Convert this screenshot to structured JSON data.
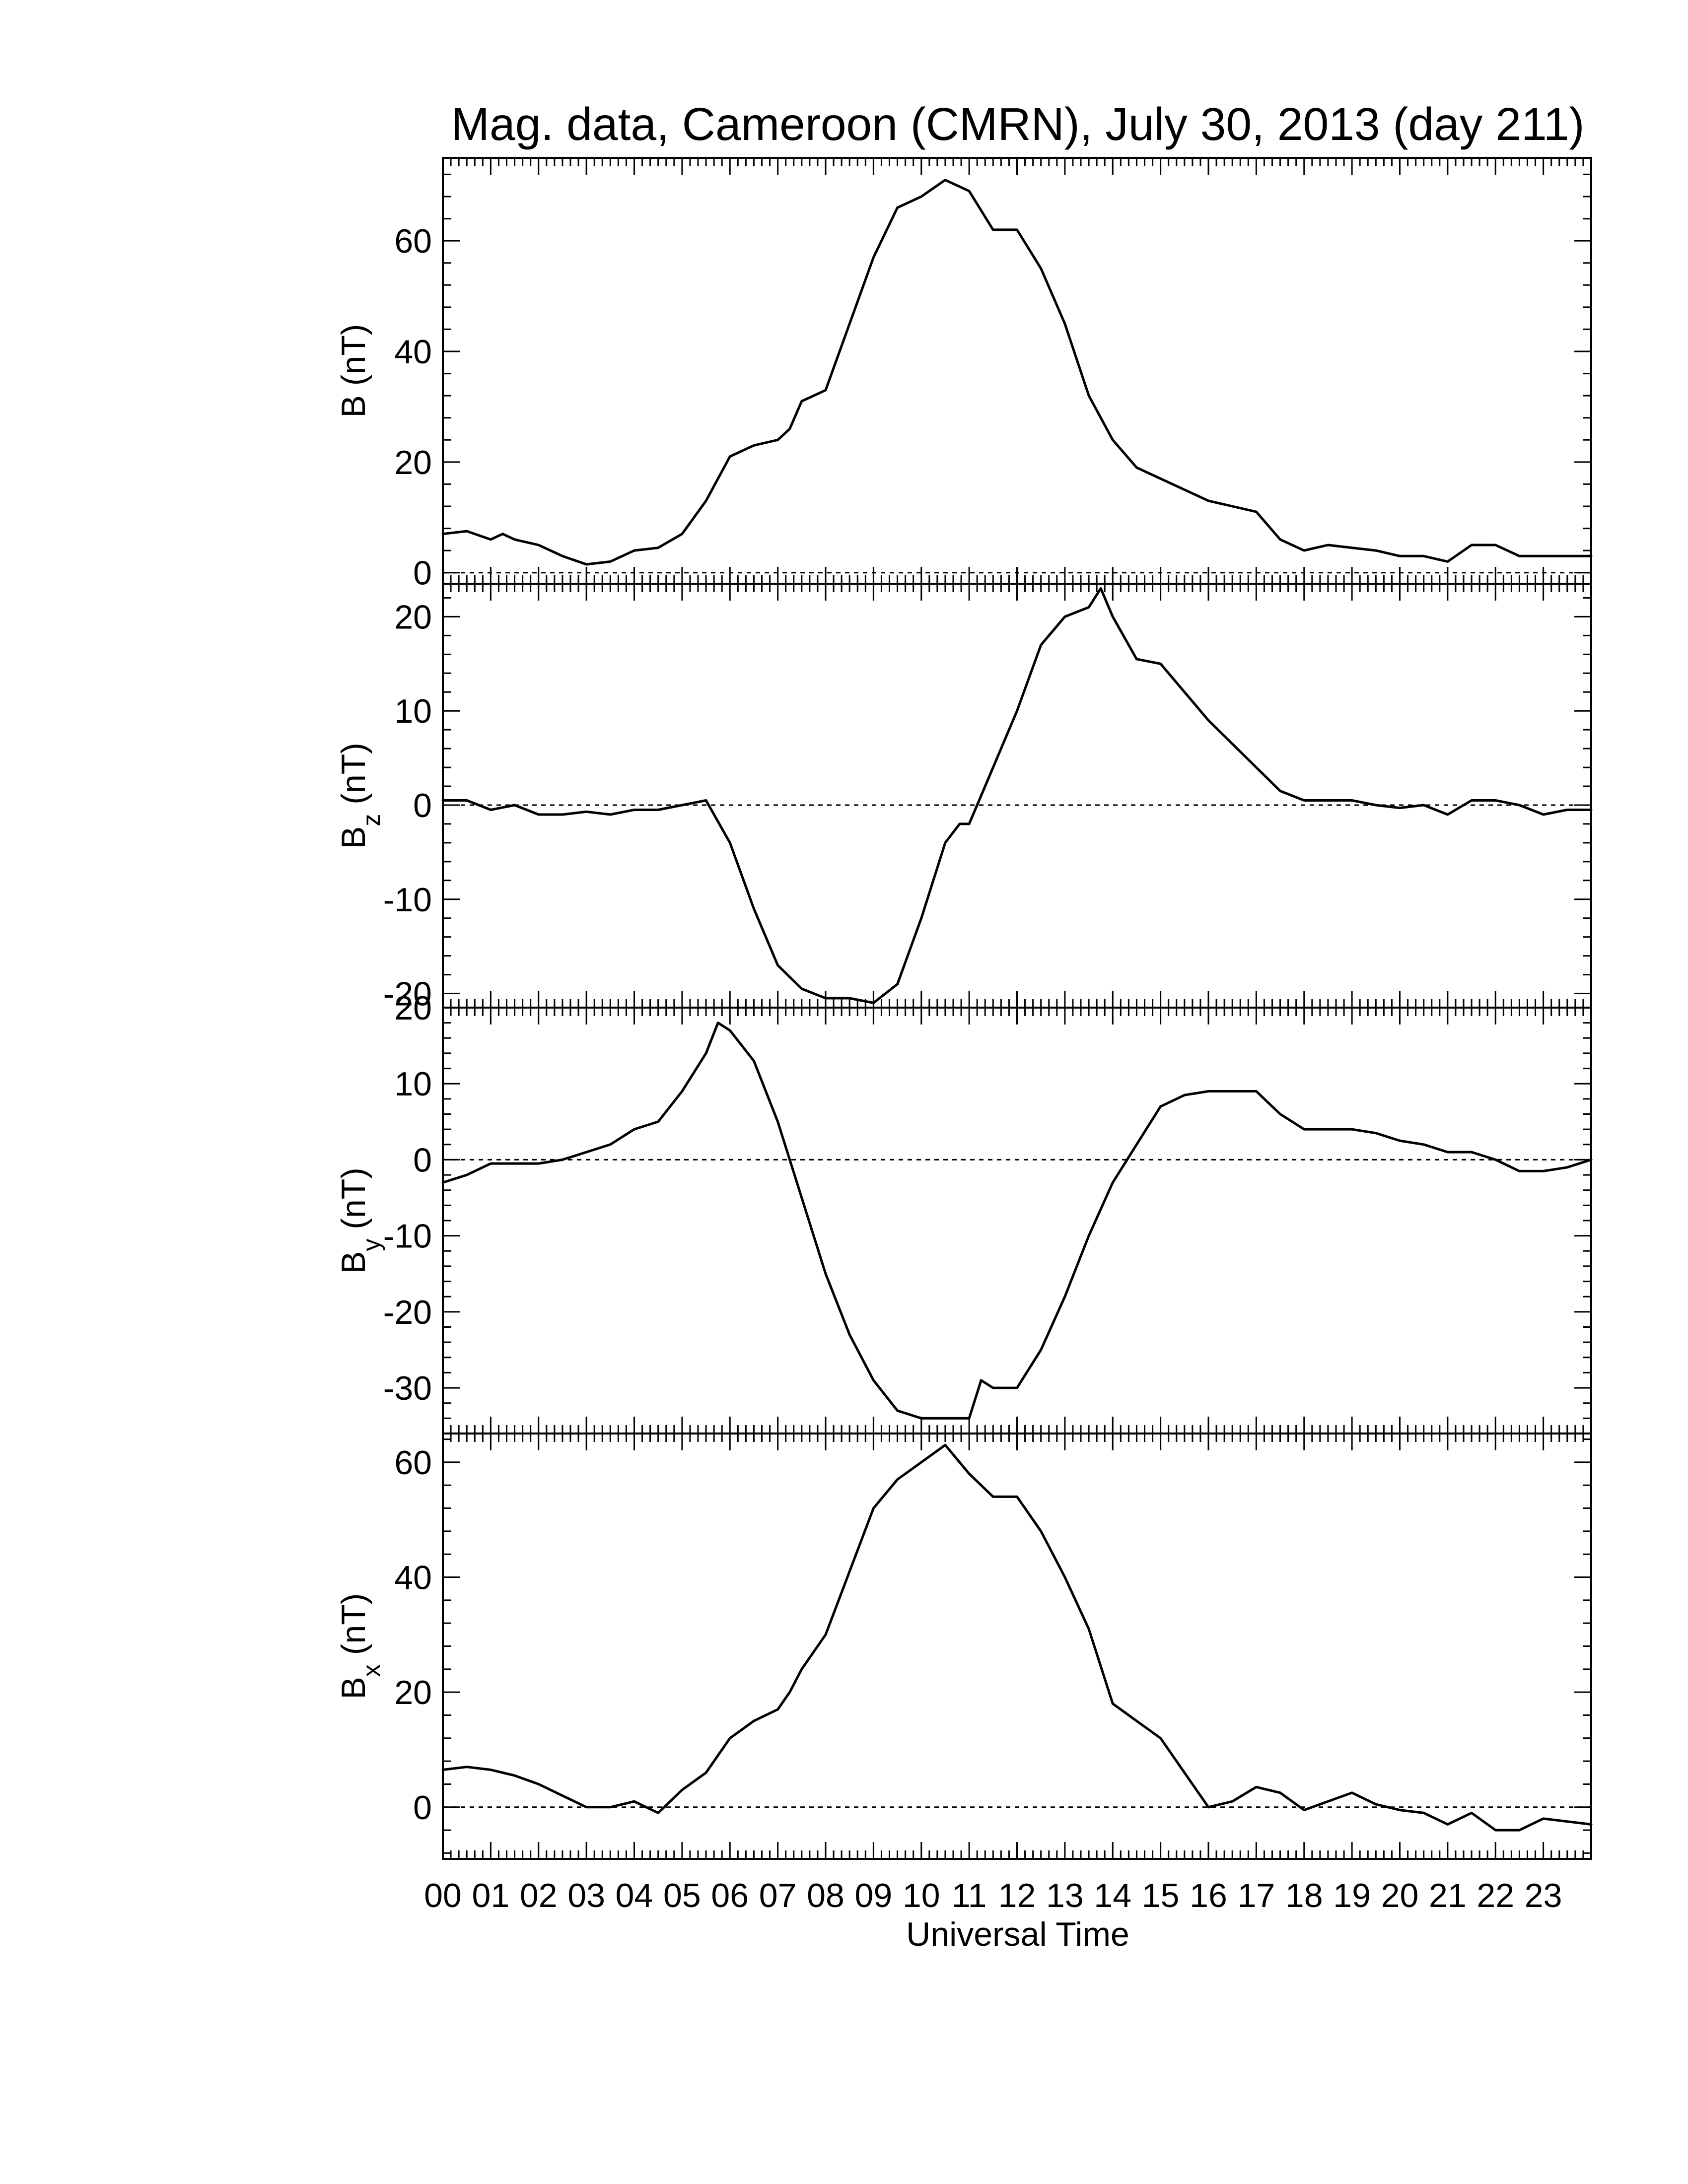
{
  "title": "Mag. data, Cameroon (CMRN), July 30, 2013 (day 211)",
  "xlabel": "Universal Time",
  "x_tick_labels": [
    "00",
    "01",
    "02",
    "03",
    "04",
    "05",
    "06",
    "07",
    "08",
    "09",
    "10",
    "11",
    "12",
    "13",
    "14",
    "15",
    "16",
    "17",
    "18",
    "19",
    "20",
    "21",
    "22",
    "23"
  ],
  "chart_data": [
    {
      "type": "line",
      "ylabel": "B (nT)",
      "ylabel_main": "B (nT)",
      "xlim": [
        0,
        24
      ],
      "ylim": [
        -2,
        75
      ],
      "yticks": [
        0,
        20,
        40,
        60
      ],
      "zero_line": true,
      "x": [
        0,
        0.5,
        1,
        1.25,
        1.5,
        2,
        2.5,
        3,
        3.5,
        4,
        4.5,
        5,
        5.5,
        6,
        6.5,
        7,
        7.25,
        7.5,
        8,
        8.5,
        9,
        9.5,
        10,
        10.5,
        11,
        11.5,
        12,
        12.5,
        13,
        13.5,
        14,
        14.5,
        15,
        15.5,
        16,
        16.5,
        17,
        17.5,
        18,
        18.5,
        19,
        19.5,
        20,
        20.5,
        21,
        21.5,
        22,
        22.5,
        23,
        23.5,
        24
      ],
      "y": [
        7,
        7.5,
        6,
        7,
        6,
        5,
        3,
        1.5,
        2,
        4,
        4.5,
        7,
        13,
        21,
        23,
        24,
        26,
        31,
        33,
        45,
        57,
        66,
        68,
        71,
        69,
        62,
        62,
        55,
        45,
        32,
        24,
        19,
        17,
        15,
        13,
        12,
        11,
        6,
        4,
        5,
        4.5,
        4,
        3,
        3,
        2,
        5,
        5,
        3,
        3,
        3,
        3
      ]
    },
    {
      "type": "line",
      "ylabel": "Bz (nT)",
      "ylabel_main": "B",
      "ylabel_sub": "z",
      "ylabel_unit": "(nT)",
      "xlim": [
        0,
        24
      ],
      "ylim": [
        -21.5,
        23.5
      ],
      "yticks": [
        -20,
        -10,
        0,
        10,
        20
      ],
      "ytick_labels": [
        "-20",
        "-10",
        "0",
        "10",
        "20"
      ],
      "zero_line": true,
      "x": [
        0,
        0.5,
        1,
        1.5,
        2,
        2.5,
        3,
        3.5,
        4,
        4.5,
        5,
        5.5,
        6,
        6.5,
        7,
        7.5,
        8,
        8.5,
        9,
        9.5,
        10,
        10.5,
        10.8,
        11,
        11.5,
        12,
        12.5,
        13,
        13.5,
        13.75,
        14,
        14.5,
        15,
        15.5,
        16,
        16.5,
        17,
        17.5,
        18,
        18.5,
        19,
        19.5,
        20,
        20.5,
        21,
        21.5,
        22,
        22.5,
        23,
        23.5,
        24
      ],
      "y": [
        0.5,
        0.5,
        -0.5,
        0,
        -1,
        -1,
        -0.7,
        -1,
        -0.5,
        -0.5,
        0,
        0.5,
        -4,
        -11,
        -17,
        -19.5,
        -20.5,
        -20.5,
        -21,
        -19,
        -12,
        -4,
        -2,
        -2,
        4,
        10,
        17,
        20,
        21,
        23,
        20,
        15.5,
        15,
        12,
        9,
        6.5,
        4,
        1.5,
        0.5,
        0.5,
        0.5,
        0,
        -0.3,
        0,
        -1,
        0.5,
        0.5,
        0,
        -1,
        -0.5,
        -0.5
      ]
    },
    {
      "type": "line",
      "ylabel": "By (nT)",
      "ylabel_main": "B",
      "ylabel_sub": "y",
      "ylabel_unit": "(nT)",
      "xlim": [
        0,
        24
      ],
      "ylim": [
        -36,
        20
      ],
      "yticks": [
        -30,
        -20,
        -10,
        0,
        10,
        20
      ],
      "ytick_labels": [
        "-30",
        "-20",
        "-10",
        "0",
        "10",
        "20"
      ],
      "zero_line": true,
      "x": [
        0,
        0.5,
        1,
        1.5,
        2,
        2.5,
        3,
        3.5,
        4,
        4.5,
        5,
        5.5,
        5.75,
        6,
        6.5,
        7,
        7.5,
        8,
        8.5,
        9,
        9.5,
        10,
        10.5,
        11,
        11.25,
        11.5,
        12,
        12.5,
        13,
        13.5,
        14,
        14.5,
        15,
        15.5,
        16,
        16.5,
        17,
        17.5,
        18,
        18.5,
        19,
        19.5,
        20,
        20.5,
        21,
        21.5,
        22,
        22.5,
        23,
        23.5,
        24
      ],
      "y": [
        -3,
        -2,
        -0.5,
        -0.5,
        -0.5,
        0,
        1,
        2,
        4,
        5,
        9,
        14,
        18,
        17,
        13,
        5,
        -5,
        -15,
        -23,
        -29,
        -33,
        -34,
        -34,
        -34,
        -29,
        -30,
        -30,
        -25,
        -18,
        -10,
        -3,
        2,
        7,
        8.5,
        9,
        9,
        9,
        6,
        4,
        4,
        4,
        3.5,
        2.5,
        2,
        1,
        1,
        0,
        -1.5,
        -1.5,
        -1,
        0
      ]
    },
    {
      "type": "line",
      "ylabel": "Bx (nT)",
      "ylabel_main": "B",
      "ylabel_sub": "x",
      "ylabel_unit": "(nT)",
      "xlim": [
        0,
        24
      ],
      "ylim": [
        -9,
        65
      ],
      "yticks": [
        0,
        20,
        40,
        60
      ],
      "ytick_labels": [
        "0",
        "20",
        "40",
        "60"
      ],
      "zero_line": true,
      "x": [
        0,
        0.5,
        1,
        1.5,
        2,
        2.5,
        3,
        3.5,
        4,
        4.5,
        5,
        5.5,
        6,
        6.5,
        7,
        7.25,
        7.5,
        8,
        8.5,
        9,
        9.5,
        10,
        10.5,
        11,
        11.5,
        12,
        12.5,
        13,
        13.5,
        14,
        14.5,
        15,
        15.5,
        16,
        16.5,
        17,
        17.5,
        18,
        18.5,
        19,
        19.5,
        20,
        20.5,
        21,
        21.5,
        22,
        22.5,
        23,
        23.5,
        24
      ],
      "y": [
        6.5,
        7,
        6.5,
        5.5,
        4,
        2,
        0,
        0,
        1,
        -1,
        3,
        6,
        12,
        15,
        17,
        20,
        24,
        30,
        41,
        52,
        57,
        60,
        63,
        58,
        54,
        54,
        48,
        40,
        31,
        18,
        15,
        12,
        6,
        0,
        1,
        3.5,
        2.5,
        -0.5,
        1,
        2.5,
        0.5,
        -0.5,
        -1,
        -3,
        -1,
        -4,
        -4,
        -2,
        -2.5,
        -3
      ]
    }
  ]
}
